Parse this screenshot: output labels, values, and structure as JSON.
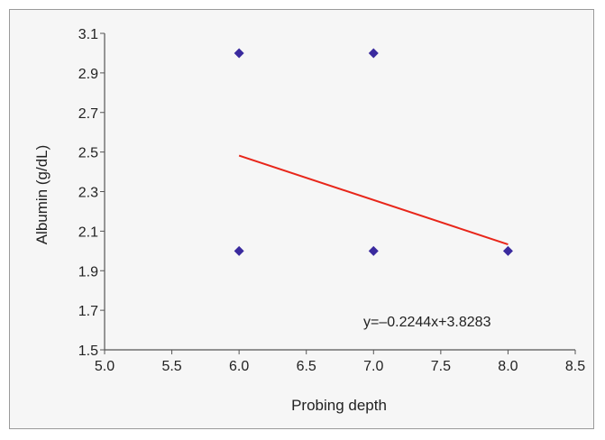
{
  "chart_data": {
    "type": "scatter",
    "xlabel": "Probing depth",
    "ylabel": "Albumin (g/dL)",
    "xlim": [
      5.0,
      8.5
    ],
    "ylim": [
      1.5,
      3.1
    ],
    "x_ticks": [
      "5.0",
      "5.5",
      "6.0",
      "6.5",
      "7.0",
      "7.5",
      "8.0",
      "8.5"
    ],
    "y_ticks": [
      "1.5",
      "1.7",
      "1.9",
      "2.1",
      "2.3",
      "2.5",
      "2.7",
      "2.9",
      "3.1"
    ],
    "grid": false,
    "points": [
      {
        "x": 6.0,
        "y": 3.0
      },
      {
        "x": 7.0,
        "y": 3.0
      },
      {
        "x": 6.0,
        "y": 2.0
      },
      {
        "x": 7.0,
        "y": 2.0
      },
      {
        "x": 8.0,
        "y": 2.0
      }
    ],
    "point_color": "#3a2a9e",
    "trendline": {
      "slope": -0.2244,
      "intercept": 3.8283,
      "x_range": [
        6.0,
        8.0
      ],
      "color": "#e8261a",
      "equation_label": "y=–0.2244x+3.8283"
    }
  }
}
